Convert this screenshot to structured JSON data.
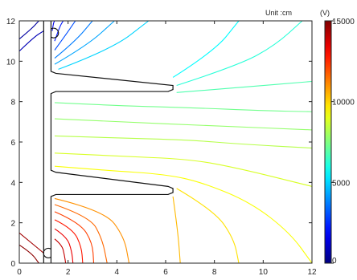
{
  "chart_data": {
    "type": "contour",
    "title": "",
    "xlabel": "",
    "ylabel": "",
    "xlim": [
      0,
      12
    ],
    "ylim": [
      0,
      12
    ],
    "x_ticks": [
      0,
      2,
      4,
      6,
      8,
      10,
      12
    ],
    "y_ticks": [
      0,
      2,
      4,
      6,
      8,
      10,
      12
    ],
    "unit_label": "Unit :cm",
    "colorbar": {
      "label": "(V)",
      "min": 0,
      "max": 15000,
      "ticks": [
        0,
        5000,
        10000,
        15000
      ],
      "tick_labels": [
        "0",
        "5000",
        "10000",
        "15000"
      ]
    },
    "electrode_outline": [
      [
        1.0,
        12.0
      ],
      [
        1.0,
        0.0
      ]
    ],
    "electrode_shape": [
      [
        1.3,
        12.0
      ],
      [
        1.3,
        9.5
      ],
      [
        1.5,
        9.4
      ],
      [
        6.3,
        8.8
      ],
      [
        6.3,
        8.6
      ],
      [
        6.1,
        8.5
      ],
      [
        1.5,
        8.5
      ],
      [
        1.3,
        8.4
      ],
      [
        1.3,
        4.6
      ],
      [
        1.5,
        4.5
      ],
      [
        6.1,
        3.8
      ],
      [
        6.3,
        3.7
      ],
      [
        6.3,
        3.5
      ],
      [
        6.1,
        3.4
      ],
      [
        1.5,
        3.4
      ],
      [
        1.3,
        3.3
      ],
      [
        1.3,
        0.0
      ]
    ],
    "contours": [
      {
        "level": 1500,
        "points": [
          [
            1.35,
            11.5
          ],
          [
            1.4,
            11.9
          ],
          [
            1.45,
            12.0
          ]
        ]
      },
      {
        "level": 2200,
        "points": [
          [
            1.45,
            11.0
          ],
          [
            1.65,
            11.7
          ],
          [
            1.8,
            12.0
          ]
        ]
      },
      {
        "level": 3000,
        "points": [
          [
            1.45,
            10.55
          ],
          [
            1.9,
            11.3
          ],
          [
            2.3,
            12.0
          ]
        ]
      },
      {
        "level": 3700,
        "points": [
          [
            1.45,
            10.15
          ],
          [
            2.3,
            11.0
          ],
          [
            3.0,
            12.0
          ]
        ]
      },
      {
        "level": 4300,
        "points": [
          [
            1.45,
            9.85
          ],
          [
            2.8,
            10.8
          ],
          [
            3.9,
            12.0
          ]
        ]
      },
      {
        "level": 5000,
        "points": [
          [
            1.6,
            9.6
          ],
          [
            3.8,
            10.6
          ],
          [
            5.3,
            12.0
          ]
        ]
      },
      {
        "level": 5600,
        "points": [
          [
            6.3,
            9.2
          ],
          [
            8.0,
            10.5
          ],
          [
            9.0,
            12.0
          ]
        ]
      },
      {
        "level": 6200,
        "points": [
          [
            6.45,
            8.8
          ],
          [
            9.0,
            9.8
          ],
          [
            10.5,
            10.8
          ],
          [
            11.6,
            12.0
          ]
        ]
      },
      {
        "level": 6800,
        "points": [
          [
            6.45,
            8.45
          ],
          [
            9.0,
            8.7
          ],
          [
            12.0,
            9.0
          ]
        ]
      },
      {
        "level": 7300,
        "points": [
          [
            1.45,
            7.95
          ],
          [
            4.0,
            7.8
          ],
          [
            7.0,
            7.7
          ],
          [
            10.0,
            7.55
          ],
          [
            12.0,
            7.5
          ]
        ]
      },
      {
        "level": 7800,
        "points": [
          [
            1.45,
            7.15
          ],
          [
            4.0,
            7.0
          ],
          [
            8.0,
            6.8
          ],
          [
            12.0,
            6.6
          ]
        ]
      },
      {
        "level": 8300,
        "points": [
          [
            1.45,
            6.3
          ],
          [
            4.0,
            6.2
          ],
          [
            7.0,
            6.1
          ],
          [
            9.0,
            5.9
          ],
          [
            12.0,
            5.7
          ]
        ]
      },
      {
        "level": 8800,
        "points": [
          [
            1.45,
            5.45
          ],
          [
            4.0,
            5.3
          ],
          [
            7.0,
            5.15
          ],
          [
            9.0,
            4.7
          ],
          [
            12.0,
            3.8
          ]
        ]
      },
      {
        "level": 9300,
        "points": [
          [
            1.45,
            4.8
          ],
          [
            3.5,
            4.6
          ],
          [
            6.0,
            4.4
          ],
          [
            7.5,
            4.0
          ],
          [
            9.5,
            3.0
          ],
          [
            11.1,
            1.5
          ],
          [
            12.0,
            0.0
          ]
        ]
      },
      {
        "level": 9800,
        "points": [
          [
            6.45,
            3.7
          ],
          [
            8.0,
            2.6
          ],
          [
            8.8,
            1.2
          ],
          [
            9.0,
            0.0
          ]
        ]
      },
      {
        "level": 10400,
        "points": [
          [
            6.3,
            3.3
          ],
          [
            6.5,
            1.6
          ],
          [
            6.6,
            0.0
          ]
        ]
      },
      {
        "level": 11000,
        "points": [
          [
            1.45,
            3.2
          ],
          [
            3.5,
            2.6
          ],
          [
            4.3,
            1.3
          ],
          [
            4.5,
            0.0
          ]
        ]
      },
      {
        "level": 11600,
        "points": [
          [
            1.45,
            2.9
          ],
          [
            2.9,
            2.3
          ],
          [
            3.4,
            1.2
          ],
          [
            3.6,
            0.0
          ]
        ]
      },
      {
        "level": 12200,
        "points": [
          [
            1.45,
            2.55
          ],
          [
            2.5,
            2.0
          ],
          [
            3.0,
            1.0
          ],
          [
            3.05,
            0.0
          ]
        ]
      },
      {
        "level": 12800,
        "points": [
          [
            1.45,
            2.15
          ],
          [
            2.2,
            1.7
          ],
          [
            2.55,
            0.8
          ],
          [
            2.6,
            0.0
          ]
        ]
      },
      {
        "level": 13400,
        "points": [
          [
            1.45,
            1.7
          ],
          [
            1.95,
            1.3
          ],
          [
            2.15,
            0.6
          ],
          [
            2.2,
            0.0
          ]
        ]
      },
      {
        "level": 14000,
        "points": [
          [
            1.45,
            1.2
          ],
          [
            1.75,
            0.9
          ],
          [
            1.85,
            0.4
          ],
          [
            1.9,
            0.0
          ]
        ]
      }
    ],
    "left_contours": [
      {
        "level": 500,
        "points": [
          [
            0.0,
            11.1
          ],
          [
            0.5,
            11.6
          ],
          [
            0.8,
            12.0
          ]
        ]
      },
      {
        "level": 800,
        "points": [
          [
            0.0,
            10.5
          ],
          [
            0.6,
            11.2
          ],
          [
            1.0,
            11.5
          ]
        ]
      },
      {
        "level": 14500,
        "points": [
          [
            0.0,
            1.5
          ],
          [
            0.6,
            0.9
          ],
          [
            1.0,
            0.5
          ]
        ]
      },
      {
        "level": 14800,
        "points": [
          [
            0.0,
            0.9
          ],
          [
            0.5,
            0.5
          ],
          [
            0.8,
            0.0
          ]
        ]
      }
    ]
  }
}
